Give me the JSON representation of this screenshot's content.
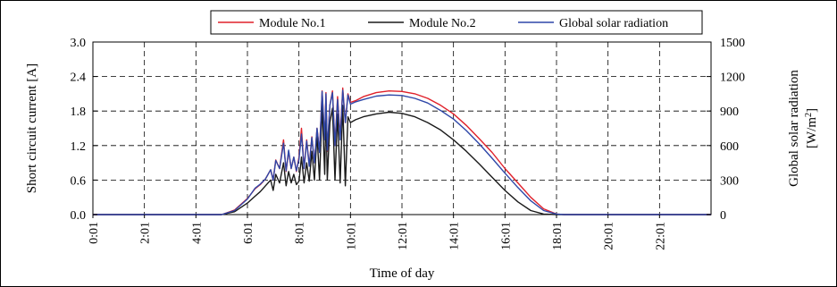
{
  "chart_data": {
    "type": "line",
    "xlabel": "Time of day",
    "ylabel_left": "Short circuit current [A]",
    "ylabel_right_line1": "Global solar radiation",
    "ylabel_right_line2": "[W/m",
    "ylabel_right_sup": "2",
    "ylabel_right_end": "]",
    "x_tick_labels": [
      "0:01",
      "2:01",
      "4:01",
      "6:01",
      "8:01",
      "10:01",
      "12:01",
      "14:01",
      "16:01",
      "18:01",
      "20:01",
      "22:01"
    ],
    "x_tick_hours": [
      0,
      2,
      4,
      6,
      8,
      10,
      12,
      14,
      16,
      18,
      20,
      22
    ],
    "xlim": [
      0,
      24
    ],
    "ylim_left": [
      0,
      3.0
    ],
    "ylim_right": [
      0,
      1500
    ],
    "y_left_ticks": [
      "0.0",
      "0.6",
      "1.2",
      "1.8",
      "2.4",
      "3.0"
    ],
    "y_left_values": [
      0,
      0.6,
      1.2,
      1.8,
      2.4,
      3.0
    ],
    "y_right_ticks": [
      "0",
      "300",
      "600",
      "900",
      "1200",
      "1500"
    ],
    "y_right_values": [
      0,
      300,
      600,
      900,
      1200,
      1500
    ],
    "grid": true,
    "legend_position": "top",
    "series": [
      {
        "name": "Module No.1",
        "color": "#e0202a",
        "axis": "left",
        "x": [
          0,
          5.0,
          5.5,
          6.0,
          6.3,
          6.5,
          6.7,
          6.9,
          7.0,
          7.1,
          7.25,
          7.4,
          7.5,
          7.6,
          7.7,
          7.8,
          7.9,
          8.0,
          8.1,
          8.2,
          8.3,
          8.4,
          8.5,
          8.6,
          8.7,
          8.8,
          8.9,
          9.0,
          9.05,
          9.1,
          9.2,
          9.3,
          9.4,
          9.5,
          9.6,
          9.7,
          9.8,
          9.9,
          10.0,
          10.2,
          10.5,
          11.0,
          11.5,
          12.0,
          12.5,
          13.0,
          13.5,
          14.0,
          14.5,
          15.0,
          15.5,
          16.0,
          16.5,
          17.0,
          17.5,
          18.0,
          18.3,
          19.0,
          24.0
        ],
        "y": [
          0,
          0,
          0.08,
          0.28,
          0.45,
          0.52,
          0.62,
          0.78,
          0.6,
          0.95,
          0.8,
          1.3,
          0.75,
          1.1,
          0.8,
          1.0,
          0.75,
          1.0,
          1.5,
          0.8,
          1.3,
          0.85,
          1.35,
          0.9,
          1.5,
          1.1,
          2.15,
          1.3,
          2.12,
          1.1,
          1.9,
          2.15,
          1.2,
          2.05,
          1.35,
          2.2,
          1.6,
          2.1,
          1.95,
          1.98,
          2.05,
          2.12,
          2.15,
          2.14,
          2.1,
          2.02,
          1.9,
          1.75,
          1.55,
          1.32,
          1.08,
          0.8,
          0.55,
          0.3,
          0.1,
          0.01,
          0,
          0,
          0
        ]
      },
      {
        "name": "Module No.2",
        "color": "#1a1a1a",
        "axis": "left",
        "x": [
          0,
          5.0,
          5.5,
          6.0,
          6.3,
          6.5,
          6.7,
          6.9,
          7.0,
          7.1,
          7.25,
          7.4,
          7.5,
          7.6,
          7.7,
          7.8,
          7.9,
          8.0,
          8.1,
          8.2,
          8.3,
          8.4,
          8.5,
          8.6,
          8.7,
          8.8,
          8.9,
          9.0,
          9.05,
          9.1,
          9.2,
          9.3,
          9.4,
          9.5,
          9.6,
          9.7,
          9.8,
          9.9,
          10.0,
          10.2,
          10.5,
          11.0,
          11.5,
          12.0,
          12.5,
          13.0,
          13.5,
          14.0,
          14.5,
          15.0,
          15.5,
          16.0,
          16.5,
          17.0,
          17.5,
          18.0,
          18.3,
          19.0,
          24.0
        ],
        "y": [
          0,
          0,
          0.05,
          0.2,
          0.32,
          0.4,
          0.5,
          0.6,
          0.42,
          0.7,
          0.55,
          0.9,
          0.5,
          0.75,
          0.55,
          0.7,
          0.52,
          0.58,
          1.0,
          0.55,
          0.9,
          0.58,
          1.1,
          0.6,
          1.4,
          0.6,
          1.9,
          0.7,
          1.85,
          0.6,
          1.6,
          1.85,
          0.6,
          1.75,
          0.55,
          1.9,
          0.5,
          1.7,
          1.6,
          1.65,
          1.7,
          1.75,
          1.78,
          1.76,
          1.7,
          1.6,
          1.47,
          1.3,
          1.1,
          0.88,
          0.65,
          0.42,
          0.22,
          0.07,
          0.01,
          0,
          0,
          0,
          0
        ]
      },
      {
        "name": "Global solar radiation",
        "color": "#2e47a8",
        "axis": "right",
        "x": [
          0,
          5.0,
          5.5,
          6.0,
          6.3,
          6.5,
          6.7,
          6.9,
          7.0,
          7.1,
          7.25,
          7.4,
          7.5,
          7.6,
          7.7,
          7.8,
          7.9,
          8.0,
          8.1,
          8.2,
          8.3,
          8.4,
          8.5,
          8.6,
          8.7,
          8.8,
          8.9,
          9.0,
          9.05,
          9.1,
          9.2,
          9.3,
          9.4,
          9.5,
          9.6,
          9.7,
          9.8,
          9.9,
          10.0,
          10.2,
          10.5,
          11.0,
          11.5,
          12.0,
          12.5,
          13.0,
          13.5,
          14.0,
          14.5,
          15.0,
          15.5,
          16.0,
          16.5,
          17.0,
          17.5,
          18.0,
          18.3,
          19.0,
          24.0
        ],
        "y": [
          0,
          0,
          35,
          135,
          230,
          265,
          310,
          390,
          300,
          470,
          400,
          620,
          380,
          560,
          400,
          500,
          380,
          480,
          700,
          400,
          640,
          420,
          670,
          450,
          750,
          540,
          1070,
          650,
          1050,
          560,
          950,
          1060,
          600,
          1000,
          650,
          1080,
          800,
          1040,
          960,
          980,
          1000,
          1030,
          1040,
          1035,
          1010,
          970,
          905,
          830,
          730,
          615,
          490,
          360,
          235,
          120,
          35,
          5,
          0,
          0,
          0
        ]
      }
    ]
  }
}
